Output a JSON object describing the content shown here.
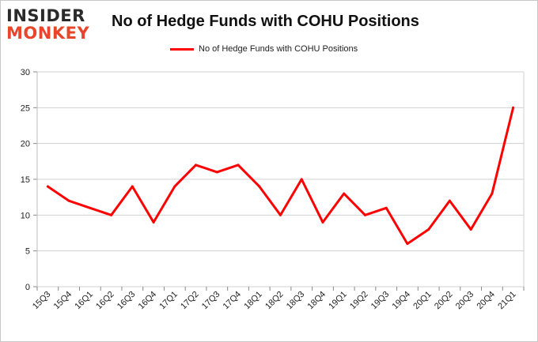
{
  "header": {
    "logo_line1": "INSIDER",
    "logo_line2": "MONKEY",
    "title": "No of Hedge Funds with COHU Positions"
  },
  "colors": {
    "line": "#ff0000",
    "grid": "#d0d0d0",
    "logo_dark": "#2a2a2a",
    "logo_accent": "#e8452b"
  },
  "chart_data": {
    "type": "line",
    "title": "No of Hedge Funds with COHU Positions",
    "xlabel": "",
    "ylabel": "",
    "categories": [
      "15Q3",
      "15Q4",
      "16Q1",
      "16Q2",
      "16Q3",
      "16Q4",
      "17Q1",
      "17Q2",
      "17Q3",
      "17Q4",
      "18Q1",
      "18Q2",
      "18Q3",
      "18Q4",
      "19Q1",
      "19Q2",
      "19Q3",
      "19Q4",
      "20Q1",
      "20Q2",
      "20Q3",
      "20Q4",
      "21Q1"
    ],
    "series": [
      {
        "name": "No of Hedge Funds with COHU Positions",
        "values": [
          14,
          12,
          11,
          10,
          14,
          9,
          14,
          17,
          16,
          17,
          14,
          10,
          15,
          9,
          13,
          10,
          11,
          6,
          8,
          12,
          8,
          13,
          25
        ]
      }
    ],
    "ylim": [
      0,
      30
    ],
    "yticks": [
      0,
      5,
      10,
      15,
      20,
      25,
      30
    ],
    "grid": true,
    "legend": "top-center"
  }
}
